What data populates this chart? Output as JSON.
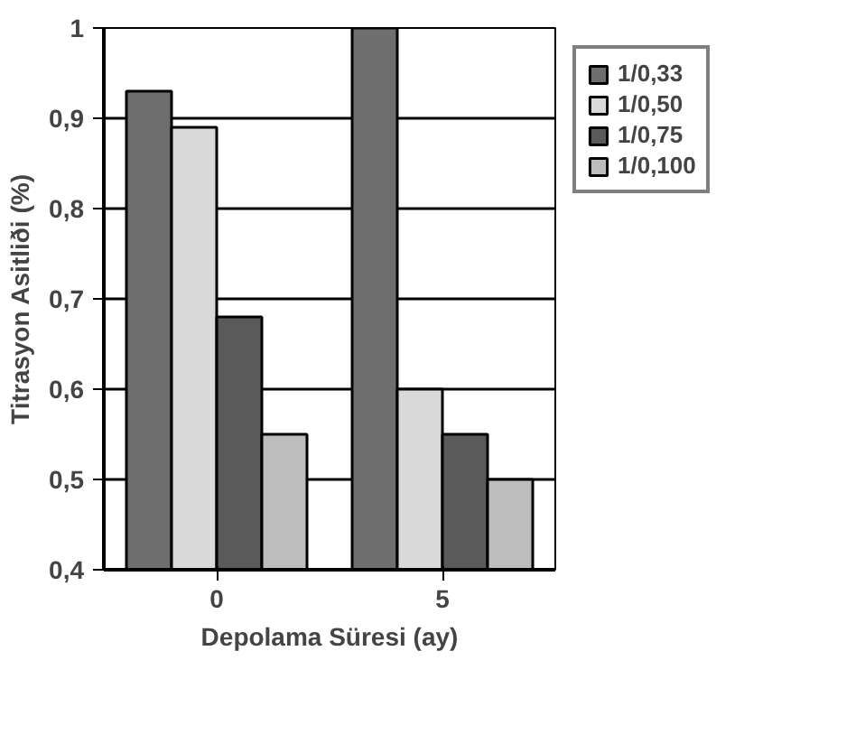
{
  "chart_data": {
    "type": "bar",
    "xlabel": "Depolama Süresi (ay)",
    "ylabel": "Titrasyon Asitliði (%)",
    "categories": [
      "0",
      "5"
    ],
    "series": [
      {
        "name": "1/0,33",
        "color": "#6e6e6e",
        "values": [
          0.93,
          1.0
        ]
      },
      {
        "name": "1/0,50",
        "color": "#d9d9d9",
        "values": [
          0.89,
          0.6
        ]
      },
      {
        "name": "1/0,75",
        "color": "#5a5a5a",
        "values": [
          0.68,
          0.55
        ]
      },
      {
        "name": "1/0,100",
        "color": "#bdbdbd",
        "values": [
          0.55,
          0.5
        ]
      }
    ],
    "ylim": [
      0.4,
      1
    ],
    "yticks": [
      {
        "value": 0.4,
        "label": "0,4"
      },
      {
        "value": 0.5,
        "label": "0,5"
      },
      {
        "value": 0.6,
        "label": "0,6"
      },
      {
        "value": 0.7,
        "label": "0,7"
      },
      {
        "value": 0.8,
        "label": "0,8"
      },
      {
        "value": 0.9,
        "label": "0,9"
      },
      1
    ],
    "grid": "y",
    "legend": "right"
  }
}
